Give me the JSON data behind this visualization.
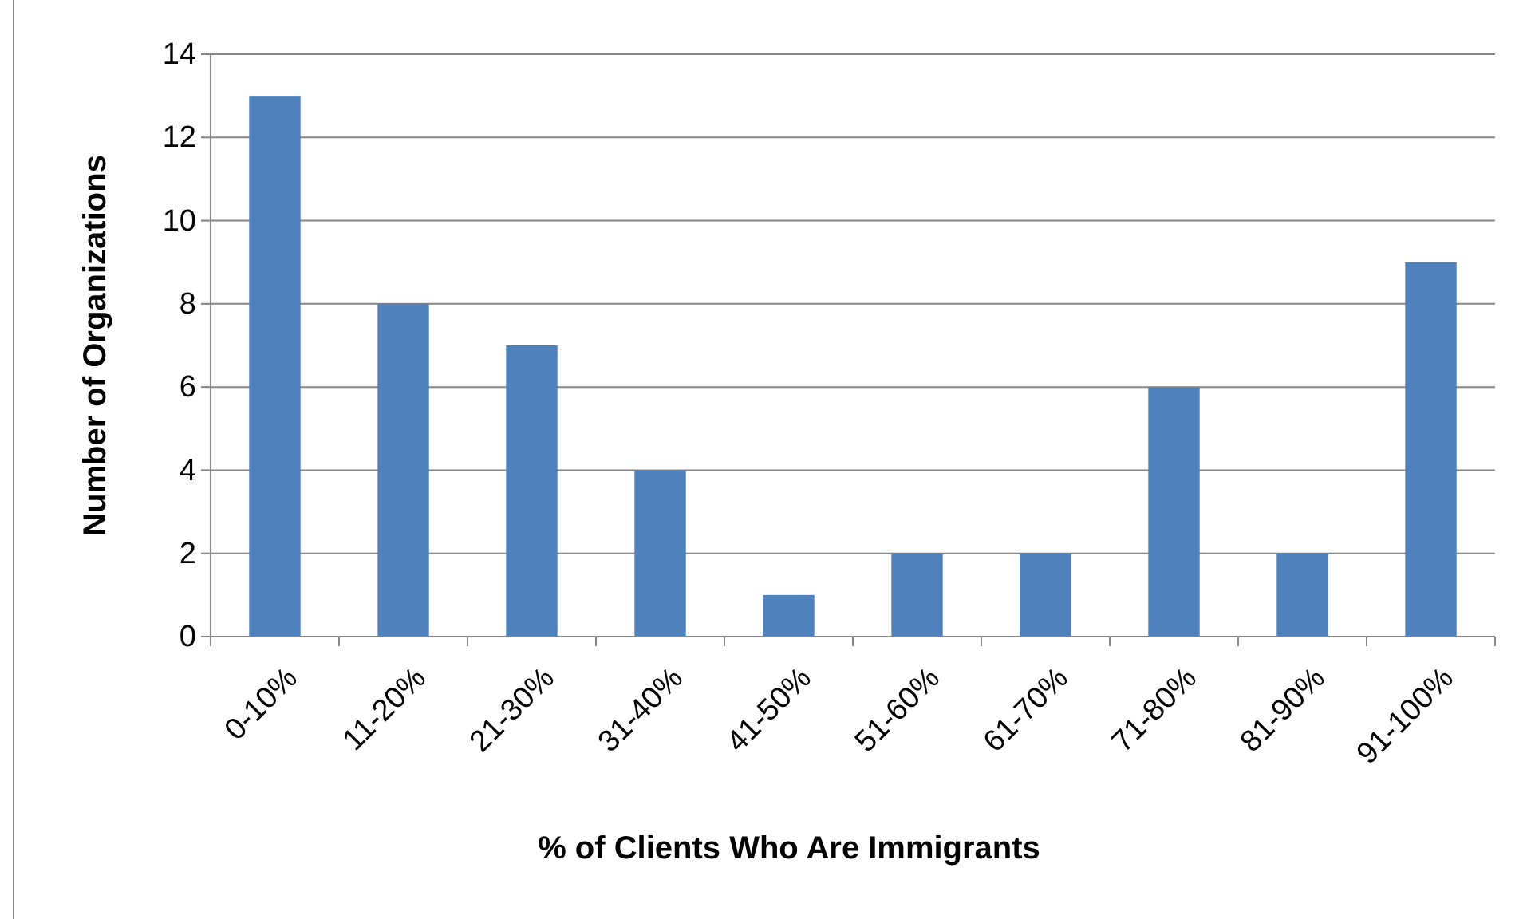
{
  "chart_data": {
    "type": "bar",
    "xlabel": "% of Clients Who Are Immigrants",
    "ylabel": "Number of Organizations",
    "categories": [
      "0-10%",
      "11-20%",
      "21-30%",
      "31-40%",
      "41-50%",
      "51-60%",
      "61-70%",
      "71-80%",
      "81-90%",
      "91-100%"
    ],
    "values": [
      13,
      8,
      7,
      4,
      1,
      2,
      2,
      6,
      2,
      9
    ],
    "color": "#4f81bd",
    "ylim": [
      0,
      14
    ],
    "yticks": [
      0,
      2,
      4,
      6,
      8,
      10,
      12,
      14
    ],
    "grid": "y"
  }
}
